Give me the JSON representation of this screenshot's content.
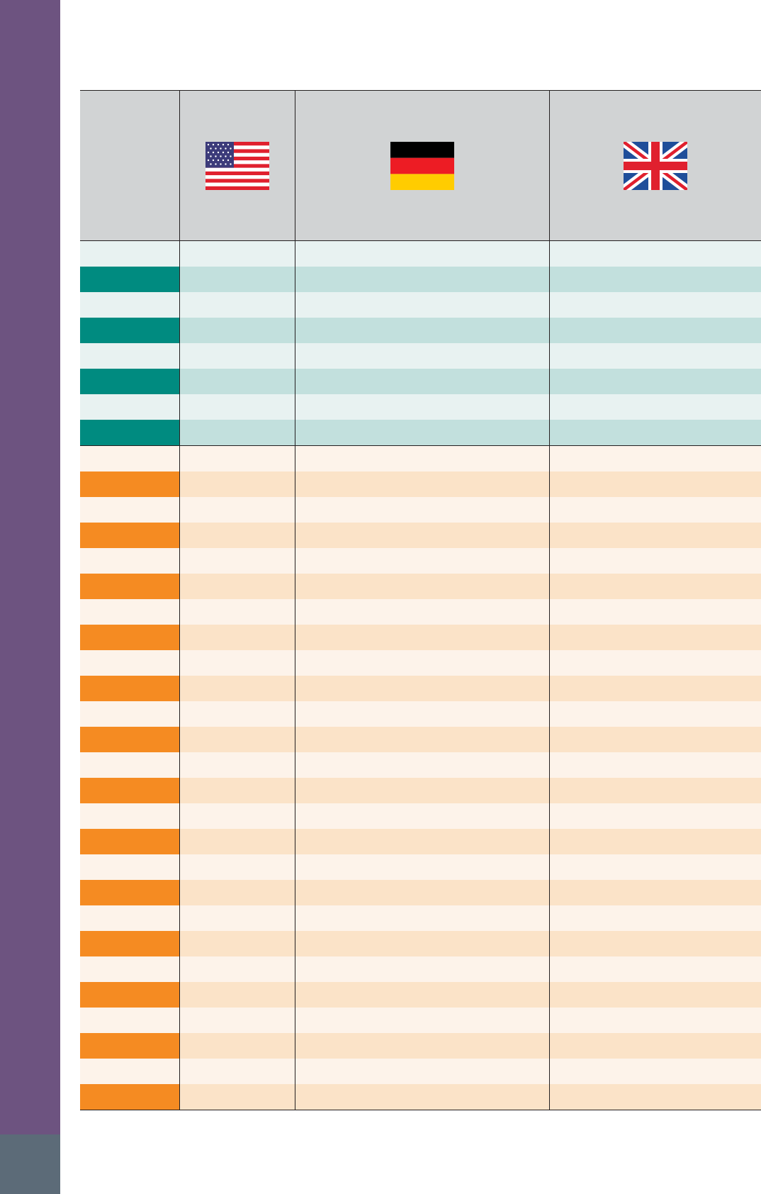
{
  "header": {
    "columns": [
      {
        "label": ""
      },
      {
        "flag": "usa-flag-icon"
      },
      {
        "flag": "germany-flag-icon"
      },
      {
        "flag": "uk-flag-icon"
      }
    ]
  },
  "colors": {
    "sidebar": "#6d5380",
    "sidebar_footer": "#5c6b78",
    "header_bg": "#d1d3d4",
    "teal_accent": "#008b80",
    "teal_row": "#c2e0dd",
    "teal_row_light": "#e8f2f1",
    "orange_accent": "#f58b22",
    "orange_row": "#fbe3c8",
    "orange_row_light": "#fdf3ea"
  },
  "sections": [
    {
      "name": "teal",
      "row_count": 8
    },
    {
      "name": "orange",
      "row_count": 26
    }
  ]
}
